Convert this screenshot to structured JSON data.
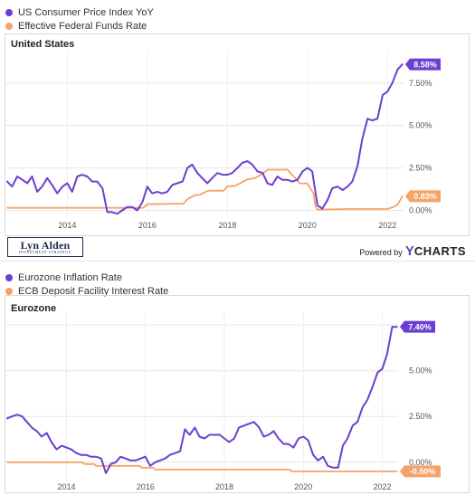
{
  "colors": {
    "purple": "#6b3fd1",
    "orange": "#f5a26b",
    "grid": "#e8e8e8",
    "text": "#555555"
  },
  "us_panel": {
    "legend": [
      {
        "label": "US Consumer Price Index YoY",
        "color": "#6b3fd1"
      },
      {
        "label": "Effective Federal Funds Rate",
        "color": "#f5a26b"
      }
    ],
    "logo": {
      "main": "Lyn Alden",
      "sub": "INVESTMENT STRATEGY"
    },
    "powered_by": "Powered by",
    "brand_y": "Y",
    "brand_rest": "CHARTS"
  },
  "ez_panel": {
    "legend": [
      {
        "label": "Eurozone Inflation Rate",
        "color": "#6b3fd1"
      },
      {
        "label": "ECB Deposit Facility Interest Rate",
        "color": "#f5a26b"
      }
    ]
  },
  "chart_data": [
    {
      "type": "line",
      "title": "United States",
      "xlim": [
        2012.5,
        2022.4
      ],
      "ylim": [
        -0.4,
        9.3
      ],
      "xticks": [
        2014,
        2016,
        2018,
        2020,
        2022
      ],
      "xtick_labels": [
        "2014",
        "2016",
        "2018",
        "2020",
        "2022"
      ],
      "yticks": [
        0,
        2.5,
        5,
        7.5
      ],
      "ytick_labels": [
        "0.00%",
        "2.50%",
        "5.00%",
        "7.50%"
      ],
      "grid": true,
      "legend_position": "top-left",
      "series": [
        {
          "name": "US Consumer Price Index YoY",
          "color": "#6b3fd1",
          "last_label": "8.58%",
          "x": [
            2012.5,
            2012.62,
            2012.75,
            2012.88,
            2013.0,
            2013.12,
            2013.25,
            2013.37,
            2013.5,
            2013.62,
            2013.75,
            2013.88,
            2014.0,
            2014.12,
            2014.25,
            2014.37,
            2014.5,
            2014.62,
            2014.75,
            2014.88,
            2015.0,
            2015.12,
            2015.25,
            2015.37,
            2015.5,
            2015.62,
            2015.75,
            2015.88,
            2016.0,
            2016.12,
            2016.25,
            2016.37,
            2016.5,
            2016.62,
            2016.75,
            2016.88,
            2017.0,
            2017.12,
            2017.25,
            2017.37,
            2017.5,
            2017.62,
            2017.75,
            2017.88,
            2018.0,
            2018.12,
            2018.25,
            2018.37,
            2018.5,
            2018.62,
            2018.75,
            2018.88,
            2019.0,
            2019.12,
            2019.25,
            2019.37,
            2019.5,
            2019.62,
            2019.75,
            2019.88,
            2020.0,
            2020.12,
            2020.25,
            2020.37,
            2020.5,
            2020.62,
            2020.75,
            2020.88,
            2021.0,
            2021.12,
            2021.25,
            2021.37,
            2021.5,
            2021.62,
            2021.75,
            2021.88,
            2022.0,
            2022.12,
            2022.25,
            2022.37
          ],
          "y": [
            1.7,
            1.4,
            2.0,
            1.8,
            1.6,
            2.0,
            1.1,
            1.4,
            1.9,
            1.5,
            1.0,
            1.4,
            1.6,
            1.1,
            2.0,
            2.1,
            2.0,
            1.7,
            1.7,
            1.3,
            -0.1,
            -0.1,
            -0.2,
            0.0,
            0.2,
            0.2,
            0.0,
            0.5,
            1.4,
            1.0,
            1.1,
            1.0,
            1.1,
            1.5,
            1.6,
            1.7,
            2.5,
            2.7,
            2.2,
            1.9,
            1.6,
            1.9,
            2.2,
            2.1,
            2.1,
            2.2,
            2.5,
            2.8,
            2.9,
            2.7,
            2.3,
            2.2,
            1.6,
            1.5,
            2.0,
            1.8,
            1.8,
            1.7,
            1.8,
            2.3,
            2.5,
            2.3,
            0.3,
            0.1,
            0.6,
            1.3,
            1.4,
            1.2,
            1.4,
            1.7,
            2.6,
            4.2,
            5.4,
            5.3,
            5.4,
            6.8,
            7.0,
            7.5,
            8.3,
            8.6
          ]
        },
        {
          "name": "Effective Federal Funds Rate",
          "color": "#f5a26b",
          "last_label": "0.83%",
          "x": [
            2012.5,
            2015.9,
            2016.0,
            2016.9,
            2017.0,
            2017.2,
            2017.3,
            2017.5,
            2017.7,
            2017.9,
            2018.0,
            2018.2,
            2018.4,
            2018.5,
            2018.7,
            2018.9,
            2019.0,
            2019.5,
            2019.6,
            2019.7,
            2019.8,
            2020.0,
            2020.15,
            2020.2,
            2020.25,
            2021.0,
            2022.0,
            2022.15,
            2022.25,
            2022.37
          ],
          "y": [
            0.15,
            0.15,
            0.36,
            0.4,
            0.66,
            0.9,
            0.91,
            1.15,
            1.16,
            1.16,
            1.41,
            1.45,
            1.7,
            1.82,
            1.91,
            2.2,
            2.4,
            2.4,
            2.13,
            1.9,
            1.6,
            1.58,
            1.0,
            0.25,
            0.05,
            0.08,
            0.08,
            0.2,
            0.33,
            0.83
          ]
        }
      ]
    },
    {
      "type": "line",
      "title": "Eurozone",
      "xlim": [
        2012.5,
        2022.4
      ],
      "ylim": [
        -1.0,
        8.2
      ],
      "xticks": [
        2014,
        2016,
        2018,
        2020,
        2022
      ],
      "xtick_labels": [
        "2014",
        "2016",
        "2018",
        "2020",
        "2022"
      ],
      "yticks": [
        0,
        2.5,
        5,
        7.5
      ],
      "ytick_labels": [
        "0.00%",
        "2.50%",
        "5.00%",
        "7.50%"
      ],
      "grid": true,
      "legend_position": "top-left",
      "series": [
        {
          "name": "Eurozone Inflation Rate",
          "color": "#6b3fd1",
          "last_label": "7.40%",
          "x": [
            2012.5,
            2012.62,
            2012.75,
            2012.88,
            2013.0,
            2013.12,
            2013.25,
            2013.37,
            2013.5,
            2013.62,
            2013.75,
            2013.88,
            2014.0,
            2014.12,
            2014.25,
            2014.37,
            2014.5,
            2014.62,
            2014.75,
            2014.88,
            2015.0,
            2015.12,
            2015.25,
            2015.37,
            2015.5,
            2015.62,
            2015.75,
            2015.88,
            2016.0,
            2016.12,
            2016.25,
            2016.37,
            2016.5,
            2016.62,
            2016.75,
            2016.88,
            2017.0,
            2017.12,
            2017.25,
            2017.37,
            2017.5,
            2017.62,
            2017.75,
            2017.88,
            2018.0,
            2018.12,
            2018.25,
            2018.37,
            2018.5,
            2018.62,
            2018.75,
            2018.88,
            2019.0,
            2019.12,
            2019.25,
            2019.37,
            2019.5,
            2019.62,
            2019.75,
            2019.88,
            2020.0,
            2020.12,
            2020.25,
            2020.37,
            2020.5,
            2020.62,
            2020.75,
            2020.88,
            2021.0,
            2021.12,
            2021.25,
            2021.37,
            2021.5,
            2021.62,
            2021.75,
            2021.88,
            2022.0,
            2022.12,
            2022.25,
            2022.37
          ],
          "y": [
            2.4,
            2.5,
            2.6,
            2.5,
            2.2,
            1.9,
            1.7,
            1.4,
            1.6,
            1.1,
            0.7,
            0.9,
            0.8,
            0.7,
            0.5,
            0.4,
            0.4,
            0.3,
            0.3,
            0.2,
            -0.6,
            -0.1,
            0.0,
            0.3,
            0.2,
            0.1,
            0.1,
            0.2,
            0.3,
            -0.2,
            0.0,
            0.1,
            0.2,
            0.4,
            0.5,
            0.6,
            1.8,
            1.5,
            1.9,
            1.4,
            1.3,
            1.5,
            1.5,
            1.5,
            1.3,
            1.1,
            1.3,
            1.9,
            2.0,
            2.1,
            2.2,
            1.9,
            1.4,
            1.5,
            1.7,
            1.3,
            1.0,
            1.0,
            0.8,
            1.3,
            1.4,
            1.2,
            0.4,
            0.1,
            0.3,
            -0.2,
            -0.3,
            -0.3,
            0.9,
            1.3,
            2.0,
            2.2,
            3.0,
            3.4,
            4.1,
            4.9,
            5.1,
            5.9,
            7.4,
            7.4
          ]
        },
        {
          "name": "ECB Deposit Facility Interest Rate",
          "color": "#f5a26b",
          "last_label": "-0.50%",
          "x": [
            2012.5,
            2014.4,
            2014.45,
            2014.7,
            2014.75,
            2015.85,
            2015.9,
            2016.2,
            2016.25,
            2019.65,
            2019.7,
            2022.37
          ],
          "y": [
            0.0,
            0.0,
            -0.1,
            -0.1,
            -0.2,
            -0.2,
            -0.3,
            -0.3,
            -0.4,
            -0.4,
            -0.5,
            -0.5
          ]
        }
      ]
    }
  ]
}
